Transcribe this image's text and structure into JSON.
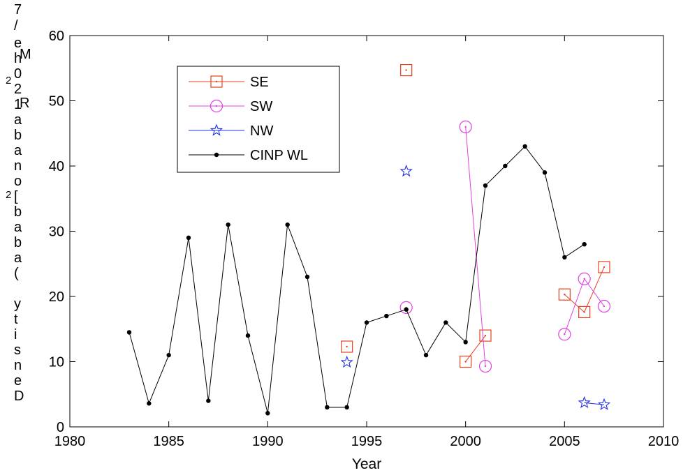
{
  "chart_data": {
    "type": "line",
    "xlabel": "Year",
    "ylabel": "Density (bighorn/ha) 2/km2",
    "xlim": [
      1980,
      2010
    ],
    "ylim": [
      0,
      60
    ],
    "xticks": [
      "1980",
      "1985",
      "1990",
      "1995",
      "2000",
      "2005",
      "2010"
    ],
    "yticks": [
      "0",
      "10",
      "20",
      "30",
      "40",
      "50",
      "60"
    ],
    "grid": false,
    "legend_position": "top-left",
    "series": [
      {
        "name": "SE",
        "color": "#e8401c",
        "marker": "square",
        "points": [
          [
            1994,
            12.3
          ],
          [
            1997,
            54.7
          ],
          [
            2000,
            10
          ],
          [
            2001,
            14
          ],
          [
            2005,
            20.3
          ],
          [
            2006,
            17.6
          ],
          [
            2007,
            24.5
          ]
        ],
        "segments": [
          [
            2,
            3
          ],
          [
            4,
            5
          ],
          [
            5,
            6
          ]
        ]
      },
      {
        "name": "SW",
        "color": "#e040e0",
        "marker": "circle",
        "points": [
          [
            1997,
            18.3
          ],
          [
            2000,
            46
          ],
          [
            2001,
            9.3
          ],
          [
            2005,
            14.2
          ],
          [
            2006,
            22.7
          ],
          [
            2007,
            18.5
          ]
        ],
        "segments": [
          [
            1,
            2
          ],
          [
            3,
            4
          ],
          [
            4,
            5
          ]
        ]
      },
      {
        "name": "NW",
        "color": "#2030e0",
        "marker": "star",
        "points": [
          [
            1994,
            9.9
          ],
          [
            1997,
            39.2
          ],
          [
            2006,
            3.7
          ],
          [
            2007,
            3.4
          ]
        ],
        "segments": [
          [
            2,
            3
          ]
        ]
      },
      {
        "name": "CINP WL",
        "color": "#000000",
        "marker": "dot",
        "points": [
          [
            1983,
            14.5
          ],
          [
            1984,
            3.6
          ],
          [
            1985,
            11
          ],
          [
            1986,
            29
          ],
          [
            1987,
            4
          ],
          [
            1988,
            31
          ],
          [
            1989,
            14
          ],
          [
            1990,
            2.1
          ],
          [
            1991,
            31
          ],
          [
            1992,
            23
          ],
          [
            1993,
            3
          ],
          [
            1994,
            3
          ],
          [
            1995,
            16
          ],
          [
            1996,
            17
          ],
          [
            1997,
            18
          ],
          [
            1998,
            11
          ],
          [
            1999,
            16
          ],
          [
            2000,
            13
          ],
          [
            2001,
            37
          ],
          [
            2002,
            40
          ],
          [
            2003,
            43
          ],
          [
            2004,
            39
          ],
          [
            2005,
            26
          ],
          [
            2006,
            28
          ]
        ],
        "segments": "all"
      }
    ]
  }
}
